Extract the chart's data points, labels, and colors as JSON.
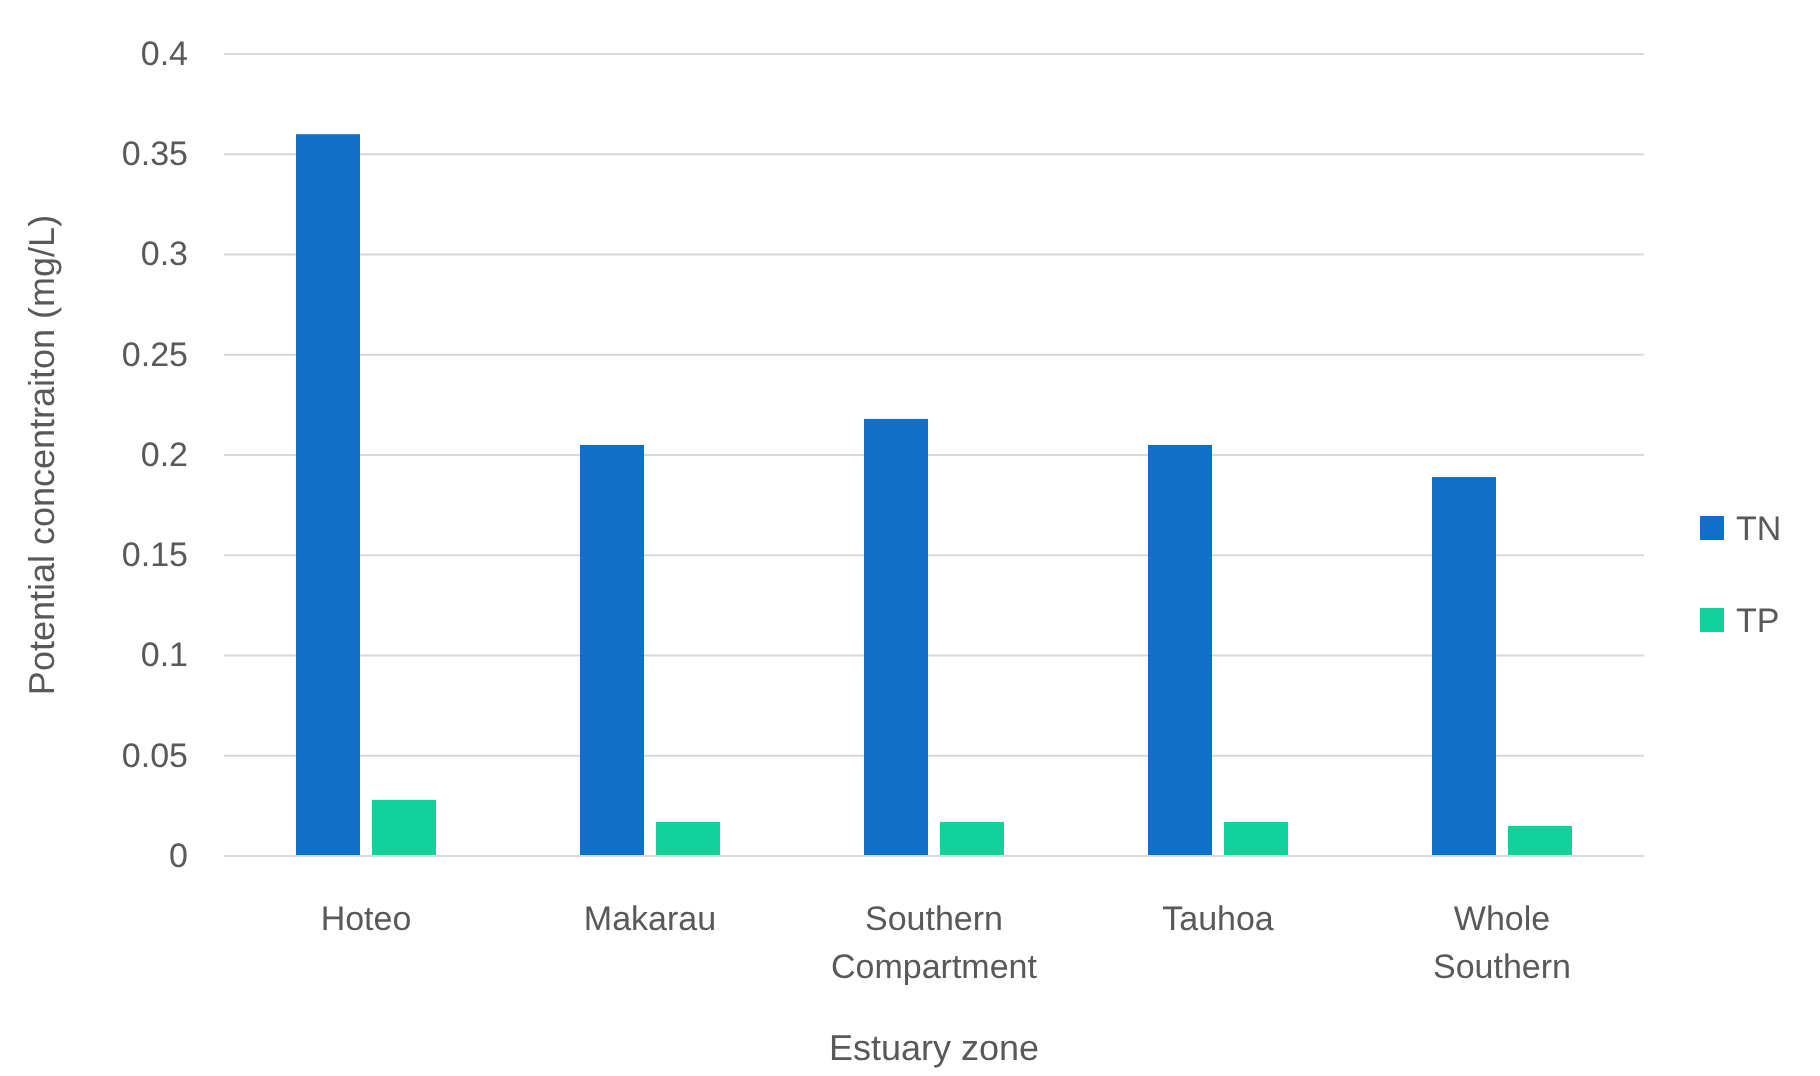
{
  "chart_data": {
    "type": "bar",
    "xlabel": "Estuary zone",
    "ylabel": "Potential concentraiton (mg/L)",
    "categories": [
      "Hoteo",
      "Makarau",
      "Southern Compartment",
      "Tauhoa",
      "Whole Southern"
    ],
    "series": [
      {
        "name": "TN",
        "color": "#1070c8",
        "values": [
          0.36,
          0.205,
          0.218,
          0.205,
          0.189
        ]
      },
      {
        "name": "TP",
        "color": "#12d19a",
        "values": [
          0.028,
          0.017,
          0.017,
          0.017,
          0.015
        ]
      }
    ],
    "ylim": [
      0,
      0.4
    ],
    "yticks": [
      0,
      0.05,
      0.1,
      0.15,
      0.2,
      0.25,
      0.3,
      0.35,
      0.4
    ],
    "grid": "y",
    "legend": "right"
  }
}
